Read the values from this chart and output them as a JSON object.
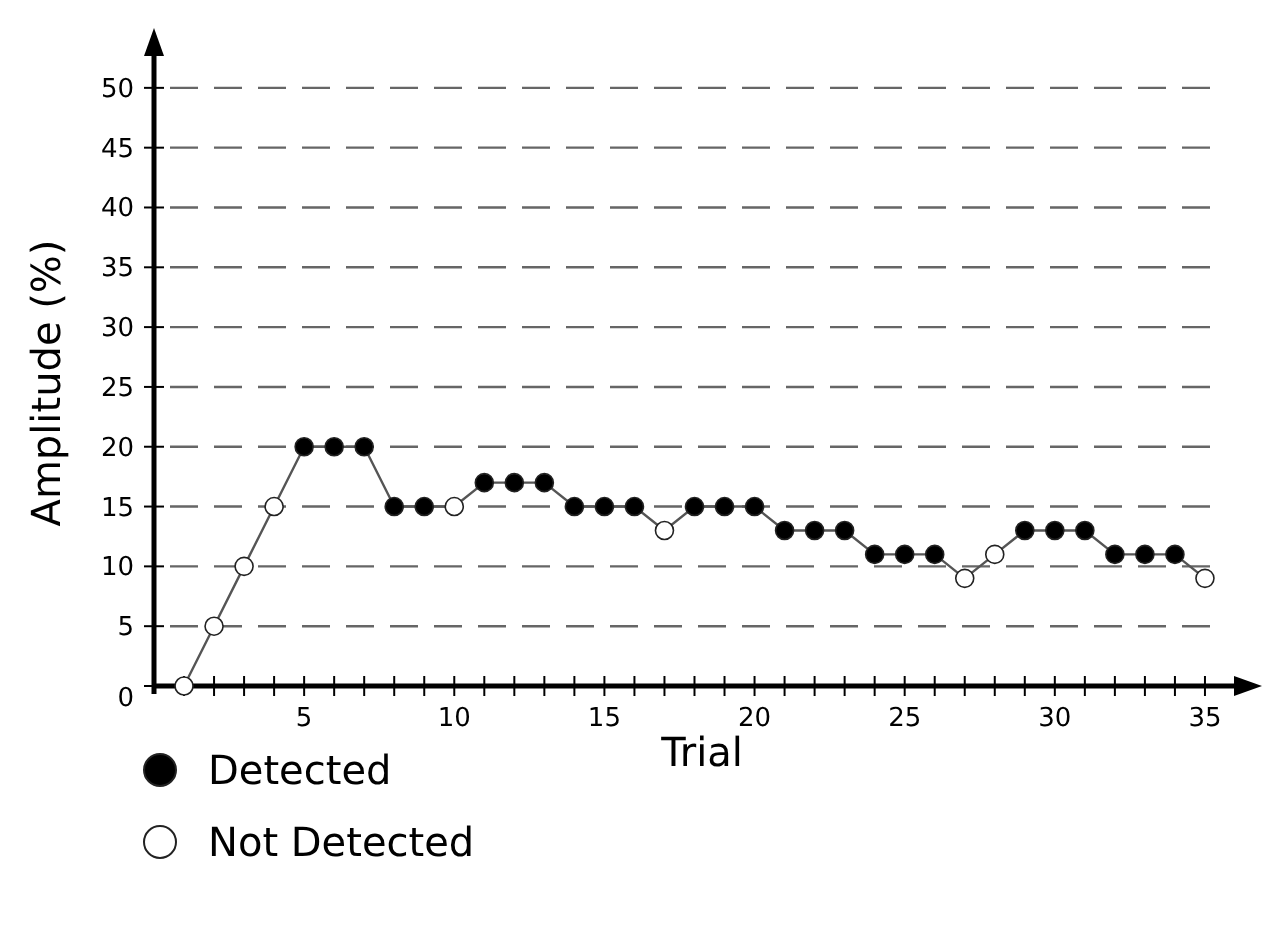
{
  "chart_data": {
    "type": "line",
    "xlabel": "Trial",
    "ylabel": "Amplitude (%)",
    "xlim": [
      0,
      36.5
    ],
    "ylim": [
      0,
      54
    ],
    "xticks": [
      {
        "value": 1,
        "label": null
      },
      {
        "value": 2,
        "label": null
      },
      {
        "value": 3,
        "label": null
      },
      {
        "value": 4,
        "label": null
      },
      5,
      {
        "value": 6,
        "label": null
      },
      {
        "value": 7,
        "label": null
      },
      {
        "value": 8,
        "label": null
      },
      {
        "value": 9,
        "label": null
      },
      10,
      {
        "value": 11,
        "label": null
      },
      {
        "value": 12,
        "label": null
      },
      {
        "value": 13,
        "label": null
      },
      {
        "value": 14,
        "label": null
      },
      15,
      {
        "value": 16,
        "label": null
      },
      {
        "value": 17,
        "label": null
      },
      {
        "value": 18,
        "label": null
      },
      {
        "value": 19,
        "label": null
      },
      20,
      {
        "value": 21,
        "label": null
      },
      {
        "value": 22,
        "label": null
      },
      {
        "value": 23,
        "label": null
      },
      {
        "value": 24,
        "label": null
      },
      25,
      {
        "value": 26,
        "label": null
      },
      {
        "value": 27,
        "label": null
      },
      {
        "value": 28,
        "label": null
      },
      {
        "value": 29,
        "label": null
      },
      30,
      {
        "value": 31,
        "label": null
      },
      {
        "value": 32,
        "label": null
      },
      {
        "value": 33,
        "label": null
      },
      {
        "value": 34,
        "label": null
      },
      35
    ],
    "yticks": [
      0,
      5,
      10,
      15,
      20,
      25,
      30,
      35,
      40,
      45,
      50
    ],
    "grid": "y",
    "legend": "bottom left",
    "series": [
      {
        "type": "line",
        "color": "#555555",
        "marker": "none",
        "line_style": "solid",
        "x": [
          1,
          2,
          3,
          4,
          5,
          6,
          7,
          8,
          9,
          10,
          11,
          12,
          13,
          14,
          15,
          16,
          17,
          18,
          19,
          20,
          21,
          22,
          23,
          24,
          25,
          26,
          27,
          28,
          29,
          30,
          31,
          32,
          33,
          34,
          35
        ],
        "values": [
          0,
          5,
          10,
          15,
          20,
          20,
          20,
          15,
          15,
          15,
          17,
          17,
          17,
          15,
          15,
          15,
          13,
          15,
          15,
          15,
          13,
          13,
          13,
          11,
          11,
          11,
          9,
          11,
          13,
          13,
          13,
          11,
          11,
          11,
          9
        ]
      },
      {
        "type": "scatter",
        "name": "Detected",
        "color": "#000000",
        "marker": "circle",
        "x": [
          5,
          6,
          7,
          8,
          9,
          11,
          12,
          13,
          14,
          15,
          16,
          18,
          19,
          20,
          21,
          22,
          23,
          24,
          25,
          26,
          29,
          30,
          31,
          32,
          33,
          34
        ],
        "values": [
          20,
          20,
          20,
          15,
          15,
          17,
          17,
          17,
          15,
          15,
          15,
          15,
          15,
          15,
          13,
          13,
          13,
          11,
          11,
          11,
          13,
          13,
          13,
          11,
          11,
          11
        ]
      },
      {
        "type": "scatter",
        "name": "Not Detected",
        "color": "#ffffff",
        "marker": "circle",
        "x": [
          1,
          2,
          3,
          4,
          10,
          17,
          27,
          28,
          35
        ],
        "values": [
          0,
          5,
          10,
          15,
          15,
          13,
          9,
          11,
          9
        ]
      }
    ]
  }
}
